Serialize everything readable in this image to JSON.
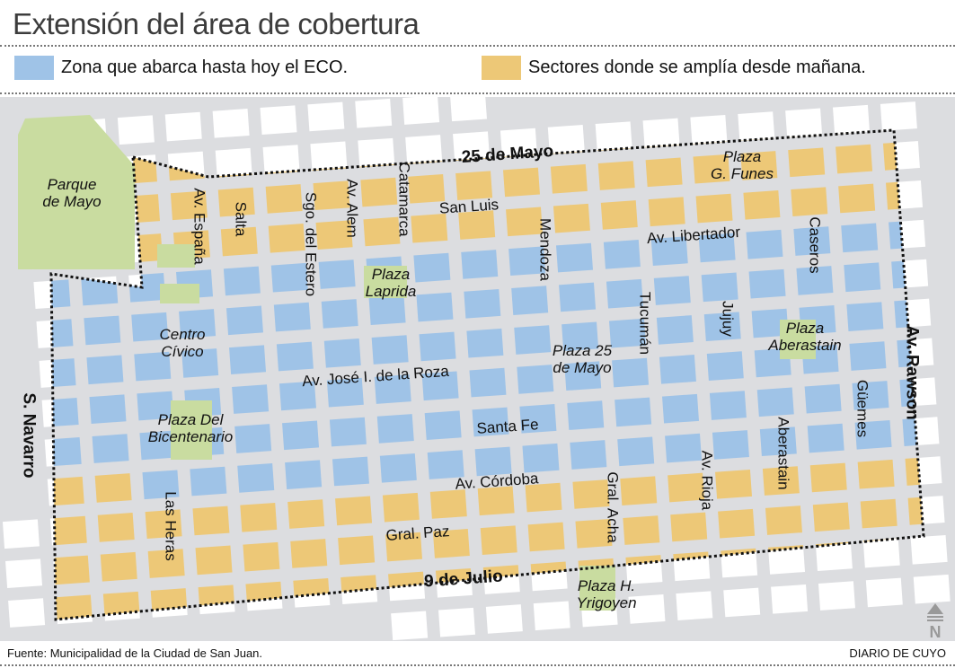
{
  "title": "Extensión del área de cobertura",
  "legend": [
    {
      "label": "Zona que abarca hasta hoy el ECO.",
      "color": "#9fc3e7"
    },
    {
      "label": "Sectores donde se amplía desde mañana.",
      "color": "#edc877"
    }
  ],
  "colors": {
    "road": "#dcdde0",
    "outside_block": "#ffffff",
    "park": "#c9dca0",
    "boundary": "#111111"
  },
  "labels": {
    "veinticinco_mayo": "25 de Mayo",
    "plaza_funes": [
      "Plaza",
      "G. Funes"
    ],
    "parque_mayo": [
      "Parque",
      "de Mayo"
    ],
    "av_espana": "Av. España",
    "salta": "Salta",
    "sgo_estero": "Sgo. del Estero",
    "av_alem": "Av. Alem",
    "catamarca": "Catamarca",
    "san_luis": "San Luis",
    "mendoza": "Mendoza",
    "av_libertador": "Av. Libertador",
    "caseros": "Caseros",
    "plaza_laprida": [
      "Plaza",
      "Laprida"
    ],
    "av_rawson": "Av. Rawson",
    "tucuman": "Tucumán",
    "jujuy": "Jujuy",
    "plaza_aberastain": [
      "Plaza",
      "Aberastain"
    ],
    "centro_civico": [
      "Centro",
      "Cívico"
    ],
    "plaza_25_mayo": [
      "Plaza 25",
      "de Mayo"
    ],
    "av_jose_roza": "Av. José I. de la Roza",
    "guemes": "Güemes",
    "s_navarro": "S. Navarro",
    "plaza_bicentenario": [
      "Plaza Del",
      "Bicentenario"
    ],
    "santa_fe": "Santa Fe",
    "aberastain": "Aberastain",
    "av_cordoba": "Av. Córdoba",
    "gral_acha": "Gral. Acha",
    "av_rioja": "Av. Rioja",
    "las_heras": "Las Heras",
    "gral_paz": "Gral. Paz",
    "nueve_julio": "9 de Julio",
    "plaza_yrigoyen": [
      "Plaza H.",
      "Yrigoyen"
    ]
  },
  "north_icon": "north-arrow-icon",
  "north_letter": "N",
  "footer": {
    "source": "Fuente: Municipalidad de la Ciudad de San Juan.",
    "brand": "DIARIO DE CUYO"
  }
}
